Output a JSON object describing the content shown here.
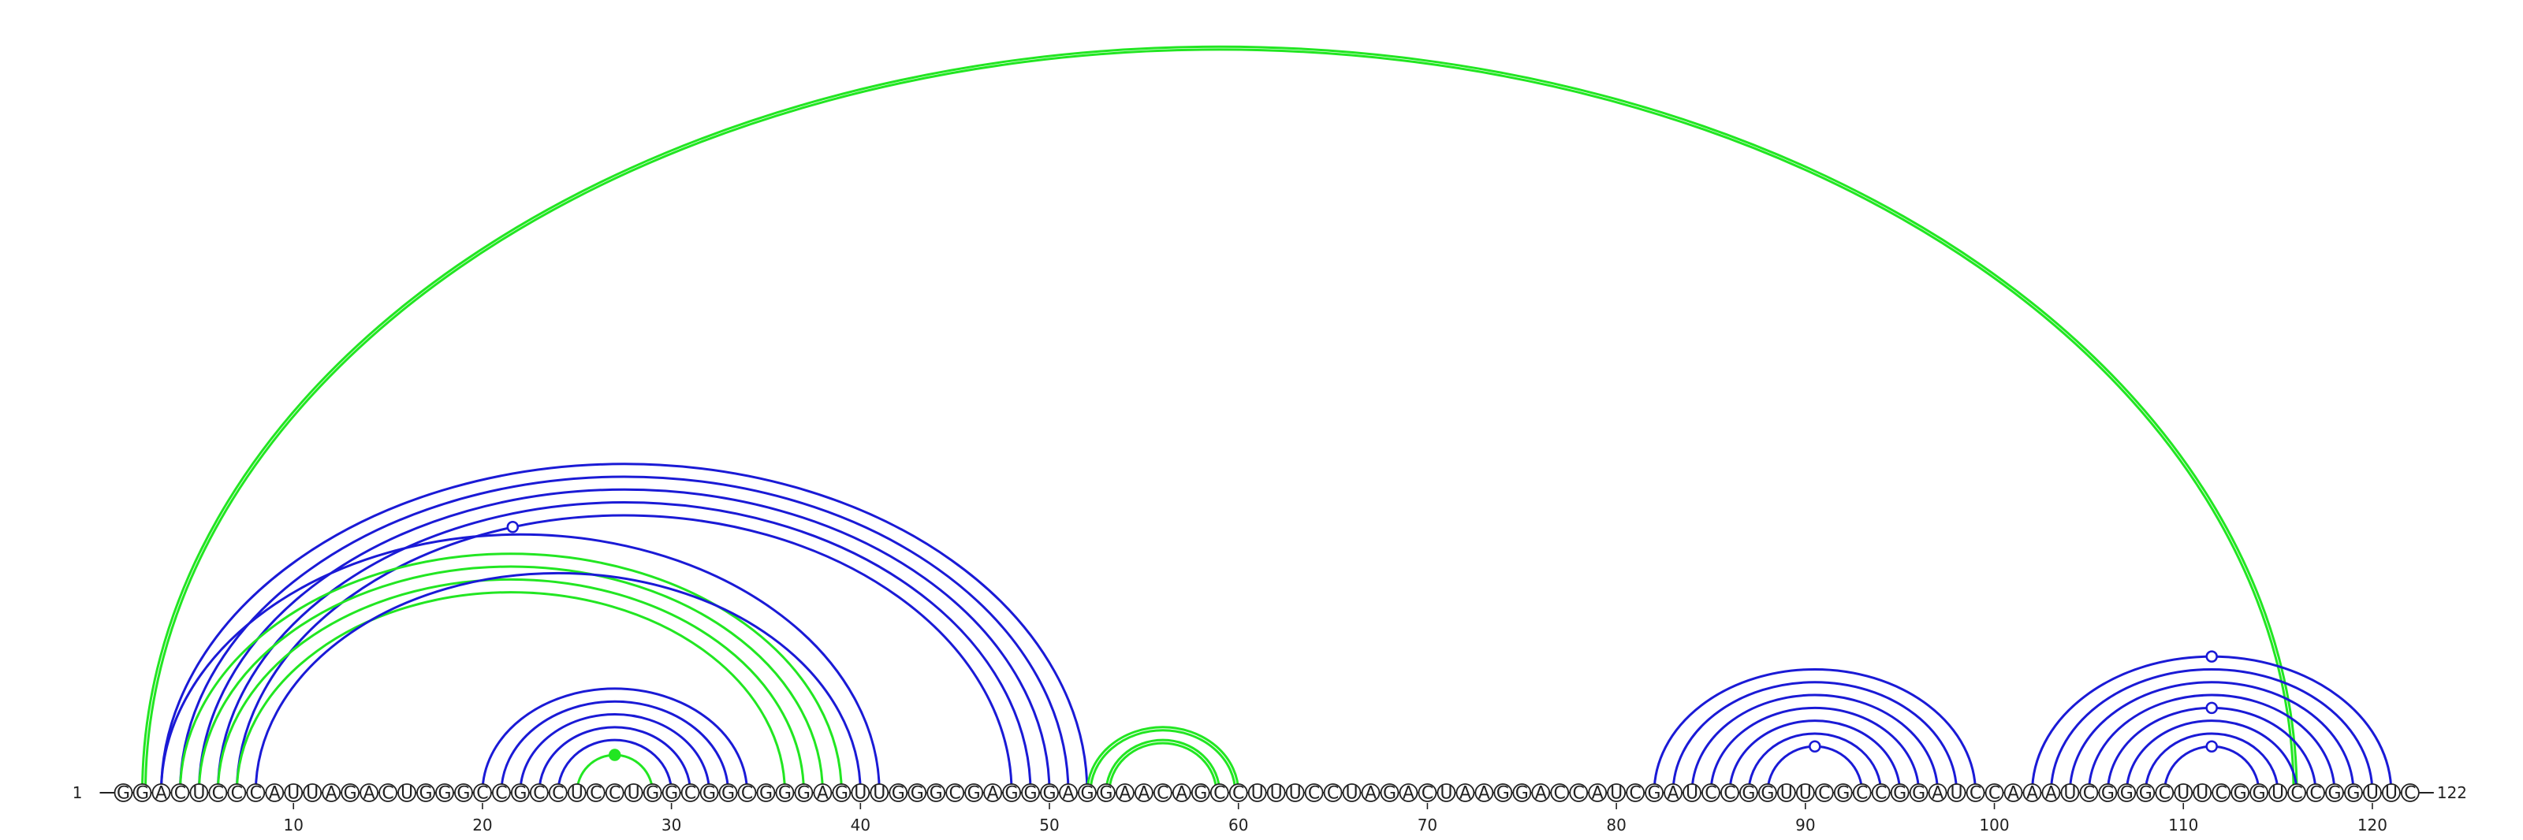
{
  "diagram": {
    "sequence": "GGACUCCCAUUAGACUGGGCCGCCUCCUGGCGGCGGGAGUUGGGCGAGGGAGGAACAGCCUUUCCUAGACUAAGGACCAUCGAUCCGGUUCGCCGGAUCCAAAUCGGGCUUCGGUCCGGUUC",
    "start_label": "1",
    "end_label": "122",
    "ticks": [
      10,
      20,
      30,
      40,
      50,
      60,
      70,
      80,
      90,
      100,
      110,
      120
    ],
    "colors": {
      "blue": "#1a1ad6",
      "green": "#22e622",
      "line": "#222222"
    },
    "arcs": [
      {
        "i": 2,
        "j": 116,
        "color": "green",
        "double": true
      },
      {
        "i": 3,
        "j": 52,
        "color": "blue"
      },
      {
        "i": 4,
        "j": 51,
        "color": "blue"
      },
      {
        "i": 5,
        "j": 50,
        "color": "blue"
      },
      {
        "i": 6,
        "j": 49,
        "color": "blue"
      },
      {
        "i": 7,
        "j": 48,
        "color": "blue"
      },
      {
        "i": 3,
        "j": 41,
        "color": "blue"
      },
      {
        "i": 4,
        "j": 39,
        "color": "green"
      },
      {
        "i": 5,
        "j": 38,
        "color": "green"
      },
      {
        "i": 6,
        "j": 37,
        "color": "green"
      },
      {
        "i": 7,
        "j": 36,
        "color": "green"
      },
      {
        "i": 8,
        "j": 40,
        "color": "blue"
      },
      {
        "i": 20,
        "j": 34,
        "color": "blue"
      },
      {
        "i": 21,
        "j": 33,
        "color": "blue"
      },
      {
        "i": 22,
        "j": 32,
        "color": "blue"
      },
      {
        "i": 23,
        "j": 31,
        "color": "blue"
      },
      {
        "i": 24,
        "j": 30,
        "color": "blue"
      },
      {
        "i": 25,
        "j": 29,
        "color": "green"
      },
      {
        "i": 52,
        "j": 60,
        "color": "green",
        "double": true
      },
      {
        "i": 53,
        "j": 59,
        "color": "green",
        "double": true
      },
      {
        "i": 82,
        "j": 99,
        "color": "blue"
      },
      {
        "i": 83,
        "j": 98,
        "color": "blue"
      },
      {
        "i": 84,
        "j": 97,
        "color": "blue"
      },
      {
        "i": 85,
        "j": 96,
        "color": "blue"
      },
      {
        "i": 86,
        "j": 95,
        "color": "blue"
      },
      {
        "i": 87,
        "j": 94,
        "color": "blue"
      },
      {
        "i": 88,
        "j": 93,
        "color": "blue"
      },
      {
        "i": 102,
        "j": 121,
        "color": "blue"
      },
      {
        "i": 103,
        "j": 120,
        "color": "blue"
      },
      {
        "i": 104,
        "j": 119,
        "color": "blue"
      },
      {
        "i": 105,
        "j": 118,
        "color": "blue"
      },
      {
        "i": 106,
        "j": 117,
        "color": "blue"
      },
      {
        "i": 107,
        "j": 116,
        "color": "blue"
      },
      {
        "i": 108,
        "j": 115,
        "color": "blue"
      },
      {
        "i": 109,
        "j": 114,
        "color": "blue"
      }
    ],
    "markers": [
      {
        "arc": 5,
        "fill": "white"
      },
      {
        "arc": 17,
        "fill": "green"
      },
      {
        "arc": 26,
        "fill": "white"
      },
      {
        "arc": 27,
        "fill": "white"
      },
      {
        "arc": 31,
        "fill": "white"
      },
      {
        "arc": 34,
        "fill": "white"
      }
    ]
  }
}
